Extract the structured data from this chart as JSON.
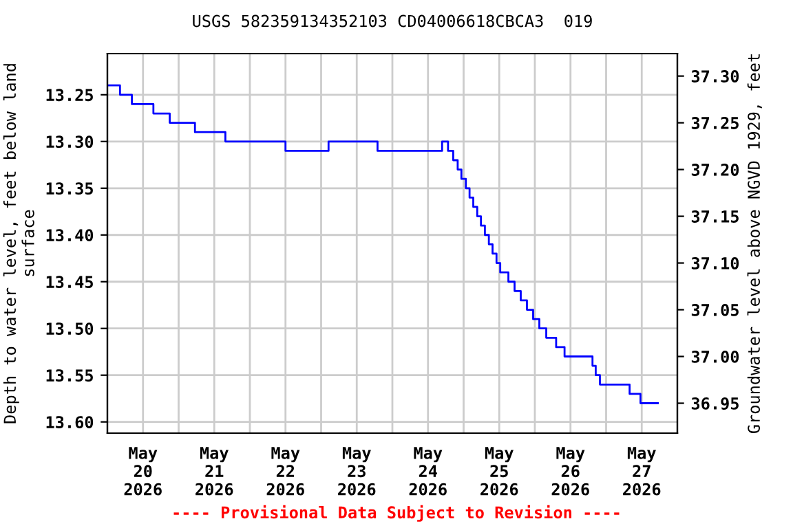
{
  "chart_data": {
    "type": "step",
    "title": "USGS 582359134352103 CD04006618CBCA3  019",
    "ylabel": "Depth to water level, feet below land\nsurface",
    "y2label": "Groundwater level above NGVD 1929, feet",
    "annotations": [
      "---- Provisional Data Subject to Revision ----"
    ],
    "x": [
      "2026-05-20T00:00",
      "2026-05-20T04:15",
      "2026-05-20T08:15",
      "2026-05-20T15:30",
      "2026-05-20T21:00",
      "2026-05-21T05:30",
      "2026-05-21T15:45",
      "2026-05-22T12:00",
      "2026-05-23T02:30",
      "2026-05-23T19:00",
      "2026-05-24T16:45",
      "2026-05-24T18:45",
      "2026-05-24T20:30",
      "2026-05-24T22:00",
      "2026-05-24T23:15",
      "2026-05-25T00:45",
      "2026-05-25T02:00",
      "2026-05-25T03:15",
      "2026-05-25T04:35",
      "2026-05-25T05:50",
      "2026-05-25T07:10",
      "2026-05-25T08:30",
      "2026-05-25T09:45",
      "2026-05-25T11:05",
      "2026-05-25T12:20",
      "2026-05-25T15:05",
      "2026-05-25T17:10",
      "2026-05-25T19:15",
      "2026-05-25T21:20",
      "2026-05-25T23:25",
      "2026-05-26T01:30",
      "2026-05-26T03:50",
      "2026-05-26T07:10",
      "2026-05-26T10:00",
      "2026-05-26T19:25",
      "2026-05-26T20:30",
      "2026-05-26T21:55",
      "2026-05-27T07:55",
      "2026-05-27T11:35",
      "2026-05-27T17:25"
    ],
    "series": [
      {
        "color": "#0000ff",
        "values": [
          13.24,
          13.25,
          13.26,
          13.27,
          13.28,
          13.29,
          13.3,
          13.31,
          13.3,
          13.31,
          13.3,
          13.31,
          13.32,
          13.33,
          13.34,
          13.35,
          13.36,
          13.37,
          13.38,
          13.39,
          13.4,
          13.41,
          13.42,
          13.43,
          13.44,
          13.45,
          13.46,
          13.47,
          13.48,
          13.49,
          13.5,
          13.51,
          13.52,
          13.53,
          13.54,
          13.55,
          13.56,
          13.57,
          13.58,
          13.58
        ]
      }
    ],
    "xlim": [
      "2026-05-20T00:00",
      "2026-05-28T00:00"
    ],
    "xticks": [
      {
        "value": "2026-05-20T12:00",
        "label": "May\n20\n2026"
      },
      {
        "value": "2026-05-21T12:00",
        "label": "May\n21\n2026"
      },
      {
        "value": "2026-05-22T12:00",
        "label": "May\n22\n2026"
      },
      {
        "value": "2026-05-23T12:00",
        "label": "May\n23\n2026"
      },
      {
        "value": "2026-05-24T12:00",
        "label": "May\n24\n2026"
      },
      {
        "value": "2026-05-25T12:00",
        "label": "May\n25\n2026"
      },
      {
        "value": "2026-05-26T12:00",
        "label": "May\n26\n2026"
      },
      {
        "value": "2026-05-27T12:00",
        "label": "May\n27\n2026"
      },
      {
        "value": "2026-05-21T00:00",
        "label": null
      },
      {
        "value": "2026-05-22T00:00",
        "label": null
      },
      {
        "value": "2026-05-23T00:00",
        "label": null
      },
      {
        "value": "2026-05-24T00:00",
        "label": null
      },
      {
        "value": "2026-05-25T00:00",
        "label": null
      },
      {
        "value": "2026-05-26T00:00",
        "label": null
      },
      {
        "value": "2026-05-27T00:00",
        "label": null
      }
    ],
    "ylim": [
      13.612,
      13.206
    ],
    "yticks": [
      13.25,
      {
        "value": 13.3,
        "label": "13.30"
      },
      13.35,
      {
        "value": 13.4,
        "label": "13.40"
      },
      13.45,
      {
        "value": 13.5,
        "label": "13.50"
      },
      13.55,
      {
        "value": 13.6,
        "label": "13.60"
      }
    ],
    "y2lim": [
      36.918,
      37.324
    ],
    "y2ticks": [
      36.95,
      {
        "value": 37.0,
        "label": "37.00"
      },
      37.05,
      {
        "value": 37.1,
        "label": "37.10"
      },
      37.15,
      {
        "value": 37.2,
        "label": "37.20"
      },
      37.25,
      {
        "value": 37.3,
        "label": "37.30"
      }
    ],
    "grid": true,
    "line_style": "solid",
    "marker": "none"
  }
}
